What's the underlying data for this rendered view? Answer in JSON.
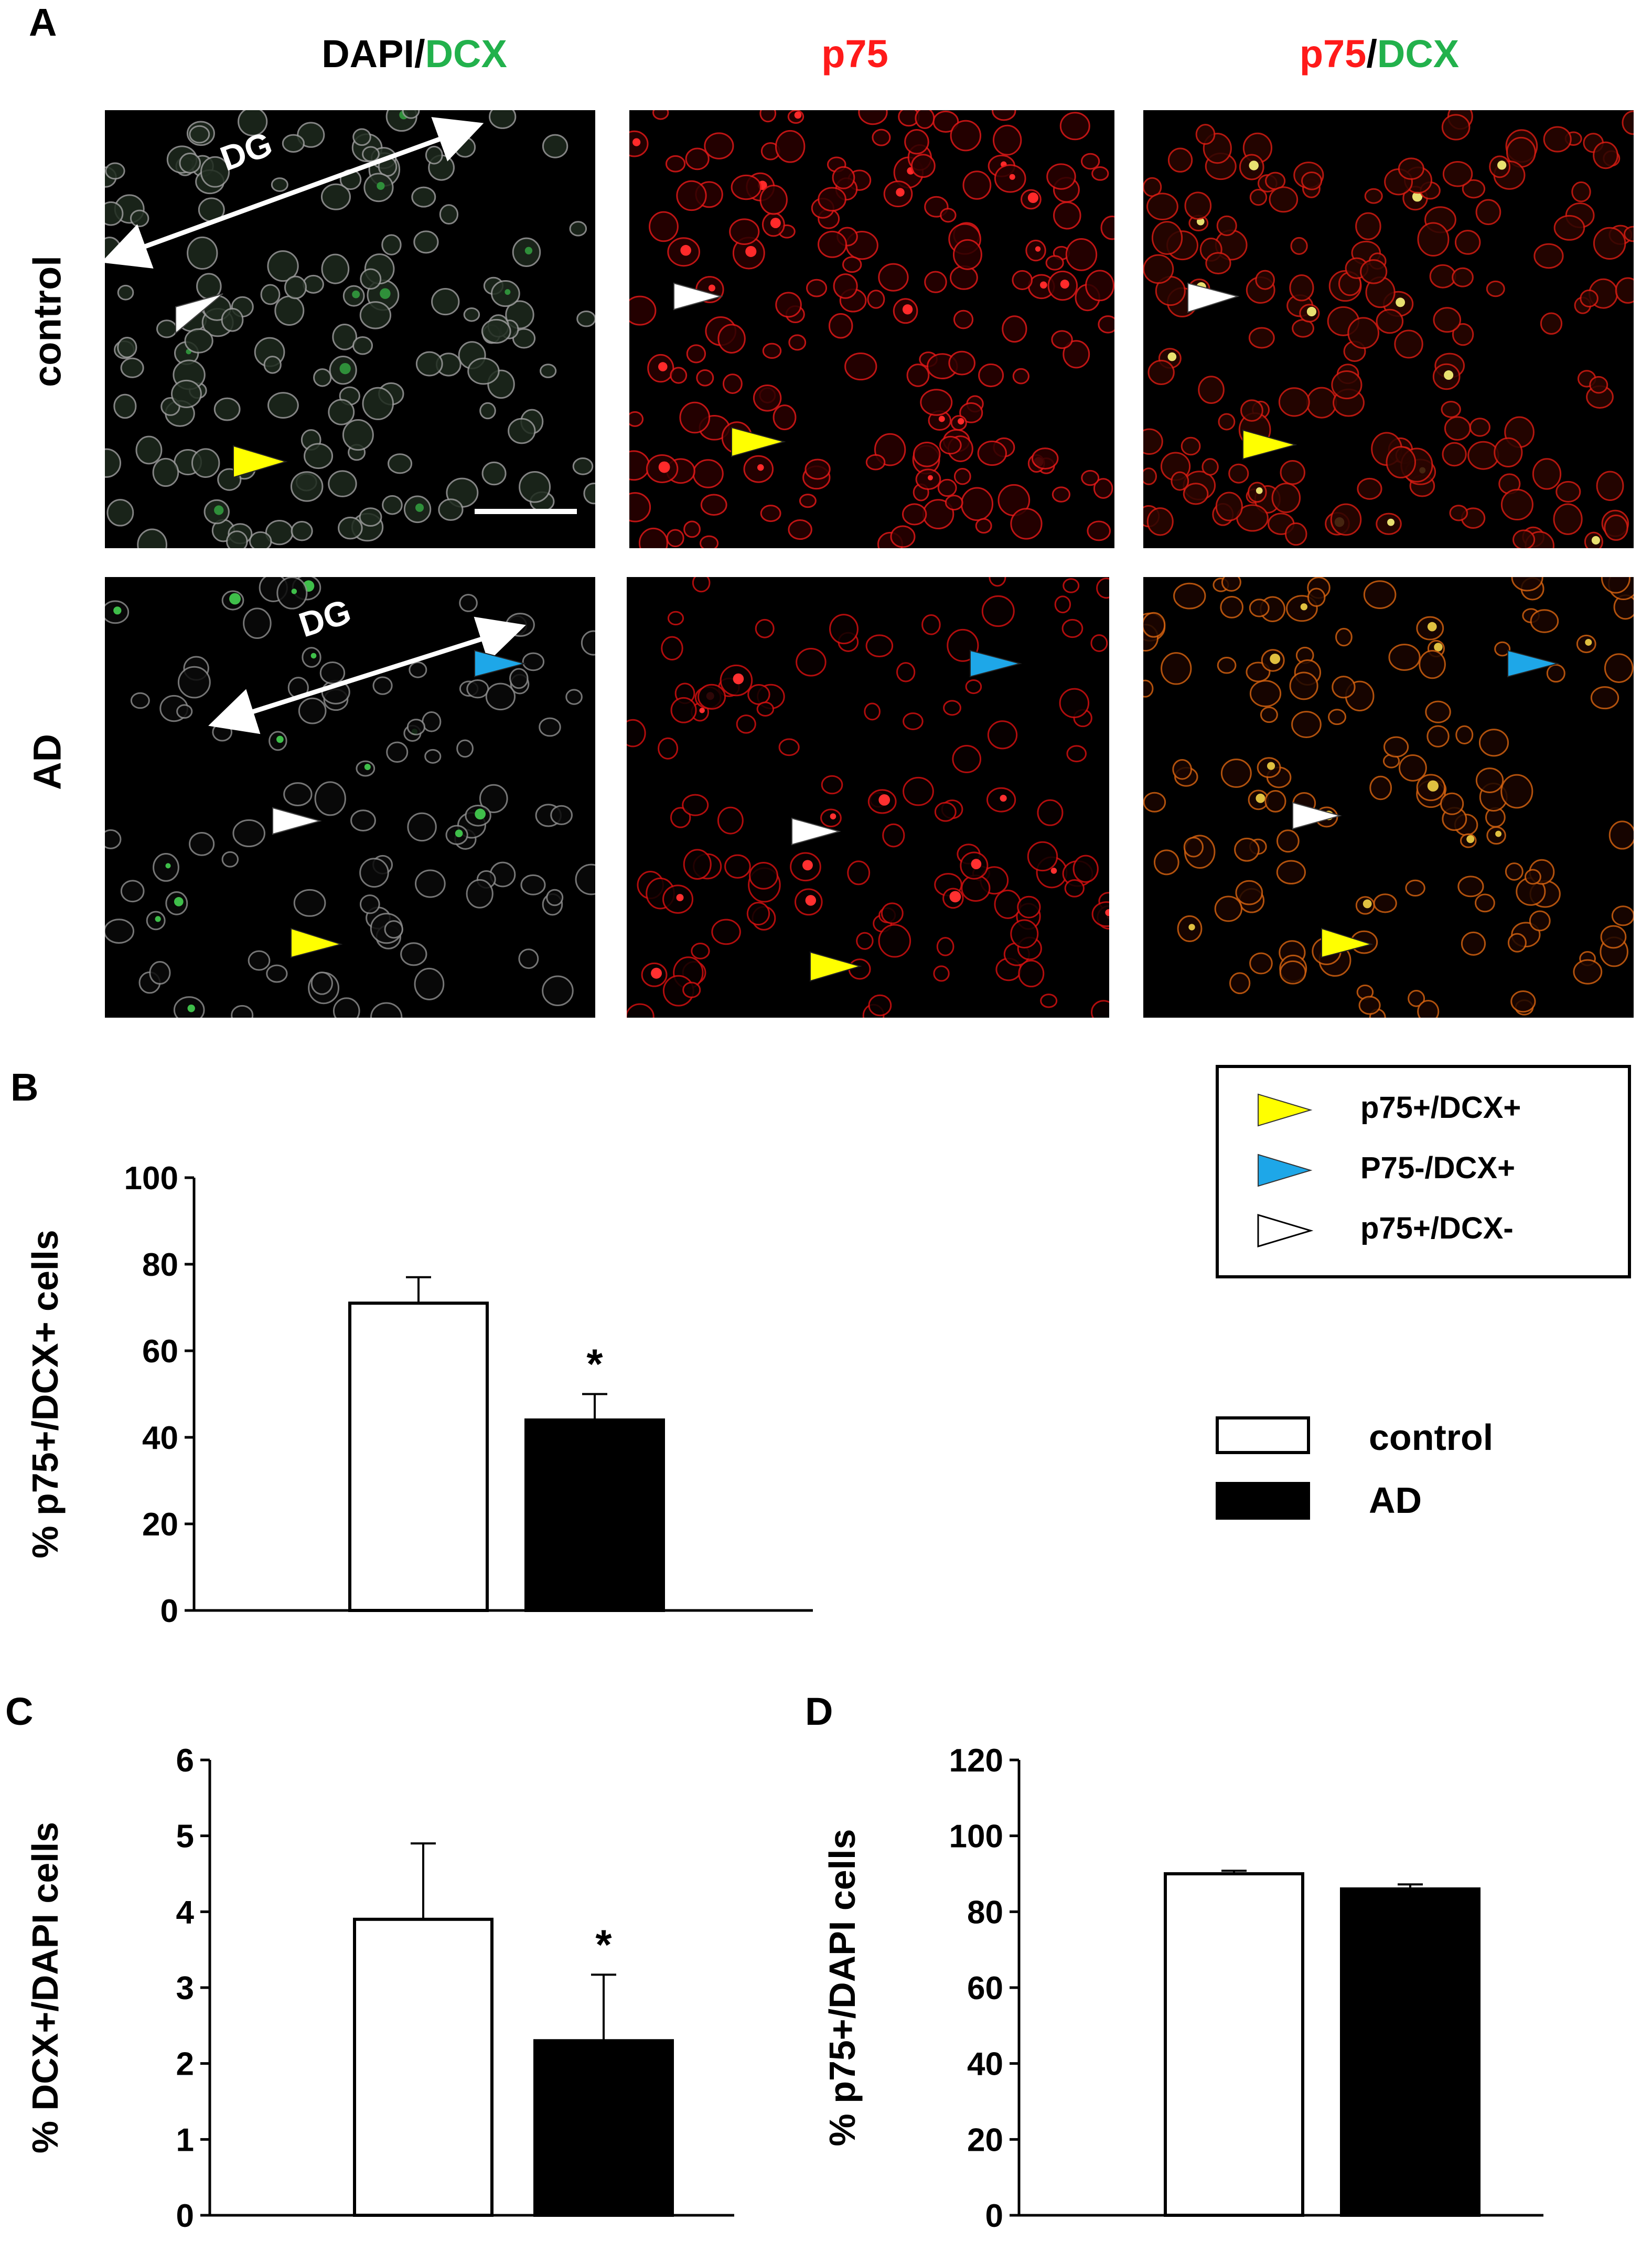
{
  "figure": {
    "panel_labels": {
      "A": "A",
      "B": "B",
      "C": "C",
      "D": "D"
    },
    "column_titles": [
      {
        "parts": [
          {
            "text": "DAPI",
            "color": "#000000"
          },
          {
            "text": "/",
            "color": "#000000"
          },
          {
            "text": "DCX",
            "color": "#22b14c"
          }
        ]
      },
      {
        "parts": [
          {
            "text": "p75",
            "color": "#ff1a1a"
          }
        ]
      },
      {
        "parts": [
          {
            "text": "p75",
            "color": "#ff1a1a"
          },
          {
            "text": "/",
            "color": "#000000"
          },
          {
            "text": "DCX",
            "color": "#22b14c"
          }
        ]
      }
    ],
    "row_labels": {
      "control": "control",
      "ad": "AD"
    },
    "dg_label": "DG",
    "arrow_legend": [
      {
        "label": "p75+/DCX+",
        "color": "#ffff00"
      },
      {
        "label": "P75-/DCX+",
        "color": "#1ea7e8"
      },
      {
        "label": "p75+/DCX-",
        "color": "#ffffff"
      }
    ],
    "group_legend": [
      {
        "label": "control",
        "fill": "#ffffff"
      },
      {
        "label": "AD",
        "fill": "#000000"
      }
    ]
  },
  "chart_data": [
    {
      "panel": "B",
      "type": "bar",
      "categories": [
        "control",
        "AD"
      ],
      "values": [
        71,
        44
      ],
      "errors": [
        6,
        6
      ],
      "significance": [
        "",
        "*"
      ],
      "ylabel": "% p75+/DCX+  cells",
      "ylim": [
        0,
        100
      ],
      "yticks": [
        0,
        20,
        40,
        60,
        80,
        100
      ],
      "colors": [
        "#ffffff",
        "#000000"
      ]
    },
    {
      "panel": "C",
      "type": "bar",
      "categories": [
        "control",
        "AD"
      ],
      "values": [
        3.9,
        2.3
      ],
      "errors": [
        1.0,
        0.87
      ],
      "significance": [
        "",
        "*"
      ],
      "ylabel": "% DCX+/DAPI  cells",
      "ylim": [
        0,
        6
      ],
      "yticks": [
        0,
        1,
        2,
        3,
        4,
        5,
        6
      ],
      "colors": [
        "#ffffff",
        "#000000"
      ]
    },
    {
      "panel": "D",
      "type": "bar",
      "categories": [
        "control",
        "AD"
      ],
      "values": [
        90,
        86
      ],
      "errors": [
        0.8,
        1.2
      ],
      "significance": [
        "",
        ""
      ],
      "ylabel": "% p75+/DAPI  cells",
      "ylim": [
        0,
        120
      ],
      "yticks": [
        0,
        20,
        40,
        60,
        80,
        100,
        120
      ],
      "colors": [
        "#ffffff",
        "#000000"
      ]
    }
  ]
}
